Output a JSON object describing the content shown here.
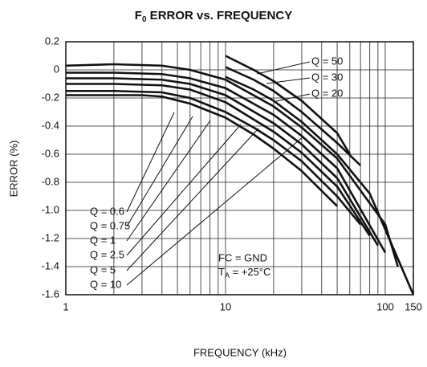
{
  "chart_data": {
    "type": "line",
    "title": "F",
    "title_sub": "0",
    "title_rest": " ERROR vs. FREQUENCY",
    "xlabel": "FREQUENCY (kHz)",
    "ylabel": "ERROR (%)",
    "annotations": [
      "FC = GND"
    ],
    "annotation_t": "T",
    "annotation_t_sub": "A",
    "annotation_t_rest": " = +25°C",
    "xlog": true,
    "xlim": [
      1,
      150
    ],
    "xticks": [
      1,
      10,
      100,
      150
    ],
    "ylim": [
      -1.6,
      0.2
    ],
    "yticks": [
      0.2,
      0,
      -0.2,
      -0.4,
      -0.6,
      -0.8,
      {
        "value": -1,
        "label": "-1.0"
      },
      -1.2,
      -1.4,
      -1.6
    ],
    "grid": true,
    "color": "#111",
    "series": [
      {
        "name": "Q = 0.6",
        "x": [
          1,
          2,
          3,
          4,
          6,
          10,
          15,
          20,
          30,
          50
        ],
        "values": [
          -0.18,
          -0.18,
          -0.18,
          -0.19,
          -0.24,
          -0.34,
          -0.46,
          -0.56,
          -0.72,
          -0.97
        ]
      },
      {
        "name": "Q = 0.75",
        "x": [
          1,
          2,
          4,
          6,
          10,
          15,
          20,
          30,
          50,
          70
        ],
        "values": [
          -0.15,
          -0.15,
          -0.16,
          -0.2,
          -0.3,
          -0.41,
          -0.5,
          -0.65,
          -0.9,
          -1.1
        ]
      },
      {
        "name": "Q = 1",
        "x": [
          1,
          2,
          4,
          6,
          10,
          20,
          30,
          50,
          80
        ],
        "values": [
          -0.1,
          -0.1,
          -0.11,
          -0.14,
          -0.23,
          -0.44,
          -0.59,
          -0.83,
          -1.18
        ]
      },
      {
        "name": "Q = 2.5",
        "x": [
          1,
          2,
          4,
          6,
          10,
          20,
          30,
          50,
          90
        ],
        "values": [
          -0.06,
          -0.06,
          -0.07,
          -0.1,
          -0.18,
          -0.38,
          -0.53,
          -0.77,
          -1.25
        ]
      },
      {
        "name": "Q = 5",
        "x": [
          1,
          2,
          4,
          6,
          10,
          20,
          30,
          50,
          100
        ],
        "values": [
          -0.02,
          -0.02,
          -0.03,
          -0.06,
          -0.13,
          -0.32,
          -0.47,
          -0.7,
          -1.3
        ]
      },
      {
        "name": "Q = 10",
        "x": [
          1,
          2,
          4,
          6,
          10,
          20,
          30,
          50,
          100,
          120
        ],
        "values": [
          0.03,
          0.04,
          0.03,
          0,
          -0.07,
          -0.26,
          -0.41,
          -0.63,
          -1.1,
          -1.4
        ]
      },
      {
        "name": "Q = 20",
        "x": [
          10,
          15,
          20,
          30,
          50,
          80,
          150
        ],
        "values": [
          -0.05,
          -0.14,
          -0.22,
          -0.37,
          -0.6,
          -0.88,
          -1.6
        ]
      },
      {
        "name": "Q = 30",
        "x": [
          10,
          15,
          20,
          30,
          50,
          70
        ],
        "values": [
          0.02,
          -0.07,
          -0.15,
          -0.3,
          -0.52,
          -0.68
        ]
      },
      {
        "name": "Q = 50",
        "x": [
          10,
          15,
          20,
          30,
          50,
          60
        ],
        "values": [
          0.1,
          0,
          -0.08,
          -0.22,
          -0.45,
          -0.6
        ]
      }
    ]
  }
}
